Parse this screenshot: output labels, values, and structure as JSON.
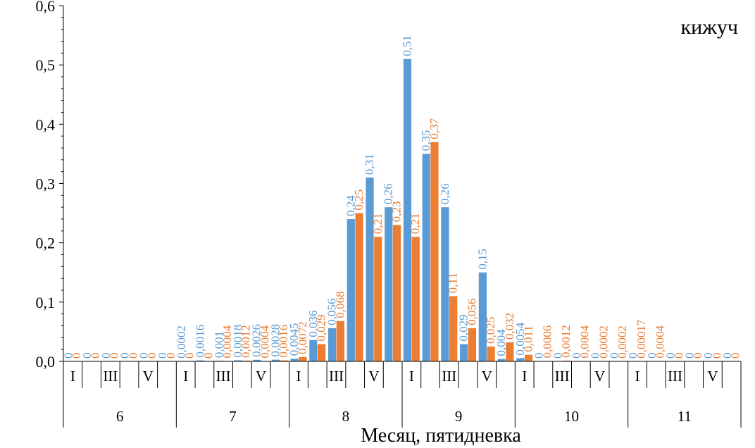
{
  "chart_data": {
    "type": "bar",
    "title": "кижуч",
    "xlabel": "Месяц, пятидневка",
    "ylabel": "",
    "ylim": [
      0,
      0.6
    ],
    "yticks": [
      "0,0",
      "0,1",
      "0,2",
      "0,3",
      "0,4",
      "0,5",
      "0,6"
    ],
    "grid": false,
    "legend": "none",
    "months": [
      "6",
      "7",
      "8",
      "9",
      "10",
      "11"
    ],
    "pentads": [
      "I",
      "",
      "III",
      "",
      "V",
      ""
    ],
    "series": [
      {
        "color": "#5B9BD5",
        "values": [
          0,
          0,
          0,
          0,
          0,
          0,
          0.0002,
          0.0016,
          0.001,
          0.0018,
          0.0026,
          0.0028,
          0.0045,
          0.036,
          0.056,
          0.24,
          0.31,
          0.26,
          0.51,
          0.35,
          0.26,
          0.029,
          0.15,
          0.004,
          0.0054,
          0,
          0,
          0,
          0,
          0,
          0,
          0,
          0,
          0,
          0,
          0
        ],
        "labels": [
          "0",
          "0",
          "0",
          "0",
          "0",
          "0",
          "0,0002",
          "0,0016",
          "0,001",
          "0,0018",
          "0,0026",
          "0,0028",
          "0,0045",
          "0,036",
          "0,056",
          "0,24",
          "0,31",
          "0,26",
          "0,51",
          "0,35",
          "0,26",
          "0,029",
          "0,15",
          "0,004",
          "0,0054",
          "0",
          "0",
          "0",
          "0",
          "0",
          "0",
          "0",
          "0",
          "0",
          "0",
          "0"
        ]
      },
      {
        "color": "#ED7D31",
        "values": [
          0,
          0,
          0,
          0,
          0,
          0,
          0,
          0,
          0.0004,
          0.0012,
          0.0004,
          0.0016,
          0.0072,
          0.029,
          0.068,
          0.25,
          0.21,
          0.23,
          0.21,
          0.37,
          0.11,
          0.056,
          0.025,
          0.032,
          0.011,
          0.0006,
          0.0012,
          0.0004,
          0.0002,
          0.0002,
          0.00017,
          0.0004,
          0,
          0,
          0,
          0
        ],
        "labels": [
          "0",
          "0",
          "0",
          "0",
          "0",
          "0",
          "0",
          "0",
          "0,0004",
          "0,0012",
          "0,0004",
          "0,0016",
          "0,0072",
          "0,029",
          "0,068",
          "0,25",
          "0,21",
          "0,23",
          "0,21",
          "0,37",
          "0,11",
          "0,056",
          "0,025",
          "0,032",
          "0,011",
          "0,0006",
          "0,0012",
          "0,0004",
          "0,0002",
          "0,0002",
          "0,00017",
          "0,0004",
          "0",
          "0",
          "0",
          "0"
        ]
      }
    ]
  }
}
